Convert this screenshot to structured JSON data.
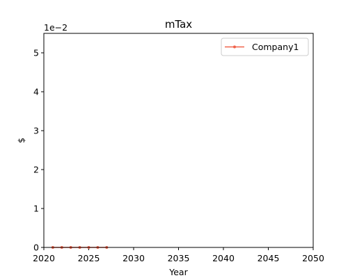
{
  "chart_data": {
    "type": "line",
    "title": "mTax",
    "xlabel": "Year",
    "ylabel": "$",
    "y_offset_text": "1e−2",
    "xlim": [
      2020,
      2050
    ],
    "ylim": [
      0,
      0.055
    ],
    "x_ticks": [
      2020,
      2025,
      2030,
      2035,
      2040,
      2045,
      2050
    ],
    "y_ticks": [
      0,
      0.01,
      0.02,
      0.03,
      0.04,
      0.05
    ],
    "y_tick_labels": [
      "0",
      "1",
      "2",
      "3",
      "4",
      "5"
    ],
    "grid": false,
    "legend_position": "upper right",
    "series": [
      {
        "name": "Company1",
        "color": "#f0624a",
        "marker": "circle",
        "x": [
          2021,
          2022,
          2023,
          2024,
          2025,
          2026,
          2027
        ],
        "y": [
          0,
          0,
          0,
          0,
          0,
          0,
          0
        ]
      }
    ]
  }
}
